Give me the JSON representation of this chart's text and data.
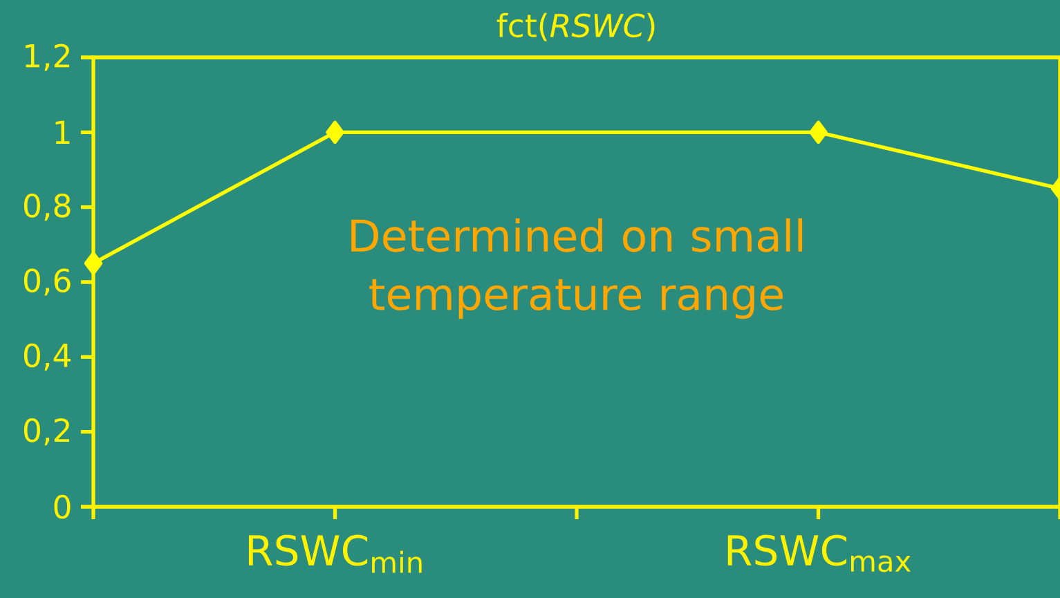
{
  "chart_data": {
    "type": "line",
    "title": "fct(*RSWC*)",
    "categories": [
      null,
      "RSWC$_{min}$",
      null,
      "RSWC$_{max}$",
      null
    ],
    "series": [
      {
        "color": "#ffff00",
        "values": [
          0.65,
          1,
          null,
          1,
          0.85
        ]
      }
    ],
    "ylim": [
      0,
      1.2
    ],
    "yticks": [
      0,
      {
        "value": 0.2,
        "label": "0,2"
      },
      {
        "value": 0.4,
        "label": "0,4"
      },
      {
        "value": 0.6,
        "label": "0,6"
      },
      {
        "value": 0.8,
        "label": "0,8"
      },
      1,
      {
        "value": 1.2,
        "label": "1,2"
      }
    ],
    "annotations": [
      "Determined on small temperature range"
    ],
    "marker": "diamond",
    "line_style": "solid",
    "grid": false
  }
}
